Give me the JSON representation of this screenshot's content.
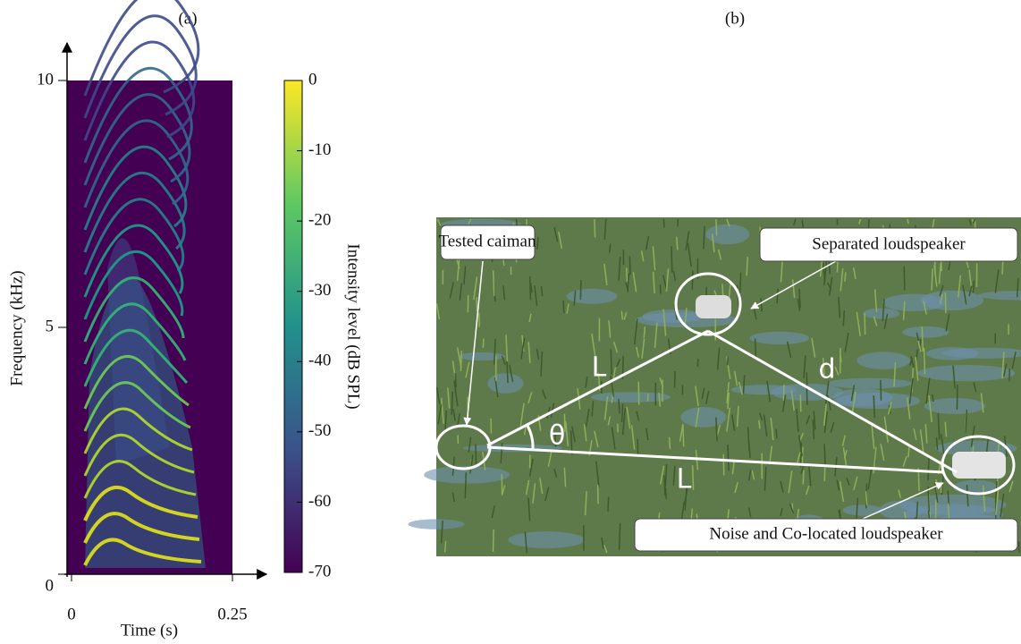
{
  "panel_a": {
    "label": "(a)",
    "xlabel": "Time (s)",
    "ylabel": "Frequency (kHz)",
    "xlim": [
      0,
      0.25
    ],
    "xticks": [
      0,
      0.25
    ],
    "ylim": [
      0,
      10
    ],
    "yticks": [
      0,
      5,
      10
    ],
    "colorbar": {
      "label": "Intensity level (dB SPL)",
      "lim": [
        -70,
        0
      ],
      "ticks": [
        0,
        -10,
        -20,
        -30,
        -40,
        -50,
        -60,
        -70
      ]
    }
  },
  "panel_b": {
    "label": "(b)",
    "annotations": [
      "Tested caiman",
      "Separated loudspeaker",
      "Noise and Co-located loudspeaker"
    ],
    "diagram_labels": [
      "L",
      "d",
      "θ",
      "L"
    ]
  }
}
